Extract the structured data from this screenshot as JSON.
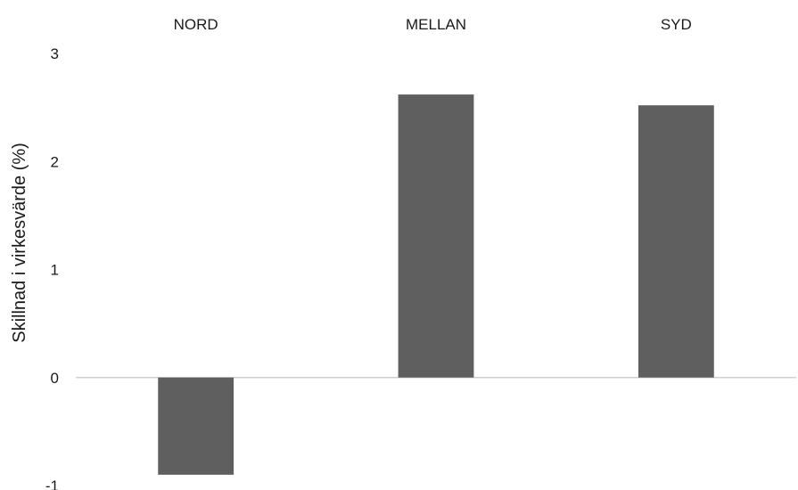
{
  "chart_data": {
    "type": "bar",
    "title": "",
    "xlabel": "",
    "ylabel": "Skillnad i virkesvärde (%)",
    "categories": [
      "NORD",
      "MELLAN",
      "SYD"
    ],
    "values": [
      -0.9,
      2.62,
      2.52
    ],
    "ylim": [
      -1,
      3
    ],
    "yticks": [
      "3",
      "2",
      "1",
      "0",
      "-1"
    ],
    "category_label_position": "top",
    "grid": false,
    "legend": "none",
    "bar_color": "#5f5f5f",
    "zero_line_color": "#d0d0d0"
  }
}
